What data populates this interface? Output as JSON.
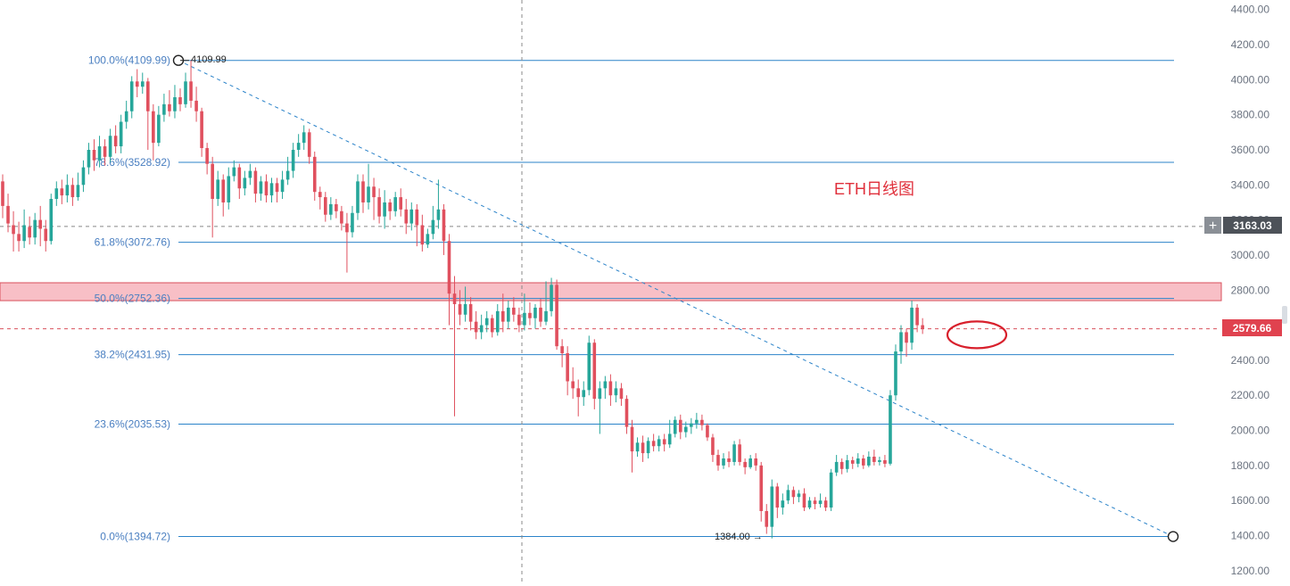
{
  "chart_data": {
    "type": "candlestick",
    "title": "ETH日线图",
    "symbol": "ETH",
    "timeframe": "daily",
    "grid": false,
    "y_axis": {
      "position": "right",
      "ylim": [
        1130,
        4450
      ],
      "ticks": [
        "4400.00",
        "4200.00",
        "4000.00",
        "3800.00",
        "3600.00",
        "3400.00",
        "3200.00",
        "3000.00",
        "2800.00",
        "2600.00",
        "2400.00",
        "2200.00",
        "2000.00",
        "1800.00",
        "1600.00",
        "1400.00",
        "1200.00"
      ]
    },
    "current_price": {
      "value": 2579.66,
      "label": "2579.66",
      "color": "#e0424f"
    },
    "crosshair": {
      "price": 3163.03,
      "label": "3163.03",
      "plus_symbol": "+"
    },
    "fibonacci": {
      "high": 4109.99,
      "low": 1394.72,
      "levels": [
        {
          "label": "100.0%(4109.99)",
          "price": 4109.99
        },
        {
          "label": "78.6%(3528.92)",
          "price": 3528.92
        },
        {
          "label": "61.8%(3072.76)",
          "price": 3072.76
        },
        {
          "label": "50.0%(2752.36)",
          "price": 2752.36
        },
        {
          "label": "38.2%(2431.95)",
          "price": 2431.95
        },
        {
          "label": "23.6%(2035.53)",
          "price": 2035.53
        },
        {
          "label": "0.0%(1394.72)",
          "price": 1394.72
        }
      ],
      "line_color": "#2b83c9"
    },
    "annotations": {
      "high_marker": "4109.99",
      "low_marker": "1384.00 →",
      "low_price": 1384.0,
      "resistance_zone": {
        "from": 2740,
        "to": 2842,
        "color": "#f8bfc6"
      },
      "circled_area_price": 2545
    },
    "candles": [
      [
        3420,
        3280,
        3460,
        3210
      ],
      [
        3280,
        3180,
        3350,
        3130
      ],
      [
        3170,
        3120,
        3250,
        3020
      ],
      [
        3120,
        3080,
        3190,
        3020
      ],
      [
        3080,
        3170,
        3260,
        3040
      ],
      [
        3160,
        3100,
        3220,
        3060
      ],
      [
        3100,
        3200,
        3240,
        3060
      ],
      [
        3200,
        3150,
        3280,
        3050
      ],
      [
        3150,
        3080,
        3200,
        3020
      ],
      [
        3080,
        3320,
        3350,
        3060
      ],
      [
        3320,
        3380,
        3420,
        3280
      ],
      [
        3380,
        3340,
        3430,
        3290
      ],
      [
        3340,
        3400,
        3460,
        3300
      ],
      [
        3400,
        3330,
        3440,
        3280
      ],
      [
        3330,
        3400,
        3470,
        3310
      ],
      [
        3400,
        3500,
        3540,
        3360
      ],
      [
        3500,
        3600,
        3640,
        3460
      ],
      [
        3600,
        3540,
        3660,
        3480
      ],
      [
        3540,
        3620,
        3680,
        3500
      ],
      [
        3620,
        3560,
        3660,
        3510
      ],
      [
        3560,
        3680,
        3720,
        3530
      ],
      [
        3680,
        3620,
        3740,
        3580
      ],
      [
        3620,
        3760,
        3800,
        3580
      ],
      [
        3760,
        3820,
        3880,
        3720
      ],
      [
        3820,
        3990,
        4020,
        3780
      ],
      [
        3990,
        3960,
        4060,
        3900
      ],
      [
        3960,
        3990,
        4040,
        3920
      ],
      [
        3990,
        3820,
        4010,
        3600
      ],
      [
        3820,
        3640,
        3860,
        3540
      ],
      [
        3640,
        3800,
        3850,
        3620
      ],
      [
        3800,
        3860,
        3920,
        3760
      ],
      [
        3860,
        3820,
        3940,
        3790
      ],
      [
        3820,
        3900,
        3970,
        3780
      ],
      [
        3900,
        3860,
        3950,
        3820
      ],
      [
        3860,
        3990,
        4040,
        3840
      ],
      [
        3990,
        3880,
        4109.99,
        3840
      ],
      [
        3880,
        3820,
        3960,
        3760
      ],
      [
        3820,
        3610,
        3840,
        3560
      ],
      [
        3610,
        3520,
        3640,
        3460
      ],
      [
        3520,
        3320,
        3560,
        3100
      ],
      [
        3320,
        3430,
        3480,
        3280
      ],
      [
        3430,
        3300,
        3460,
        3220
      ],
      [
        3300,
        3450,
        3500,
        3260
      ],
      [
        3450,
        3500,
        3540,
        3420
      ],
      [
        3500,
        3380,
        3520,
        3320
      ],
      [
        3380,
        3440,
        3480,
        3340
      ],
      [
        3440,
        3480,
        3520,
        3400
      ],
      [
        3480,
        3350,
        3500,
        3300
      ],
      [
        3350,
        3420,
        3450,
        3310
      ],
      [
        3420,
        3340,
        3460,
        3300
      ],
      [
        3340,
        3410,
        3440,
        3300
      ],
      [
        3410,
        3360,
        3440,
        3300
      ],
      [
        3360,
        3430,
        3480,
        3320
      ],
      [
        3430,
        3480,
        3560,
        3400
      ],
      [
        3480,
        3600,
        3640,
        3440
      ],
      [
        3600,
        3640,
        3690,
        3560
      ],
      [
        3640,
        3700,
        3740,
        3600
      ],
      [
        3700,
        3560,
        3720,
        3520
      ],
      [
        3560,
        3360,
        3590,
        3310
      ],
      [
        3360,
        3330,
        3390,
        3260
      ],
      [
        3330,
        3230,
        3360,
        3190
      ],
      [
        3230,
        3290,
        3330,
        3200
      ],
      [
        3290,
        3250,
        3320,
        3210
      ],
      [
        3250,
        3180,
        3280,
        3140
      ],
      [
        3180,
        3130,
        3240,
        2900
      ],
      [
        3130,
        3240,
        3280,
        3100
      ],
      [
        3240,
        3420,
        3460,
        3200
      ],
      [
        3420,
        3300,
        3460,
        3240
      ],
      [
        3300,
        3390,
        3520,
        3260
      ],
      [
        3390,
        3330,
        3440,
        3200
      ],
      [
        3330,
        3220,
        3380,
        3180
      ],
      [
        3220,
        3300,
        3370,
        3150
      ],
      [
        3300,
        3250,
        3320,
        3200
      ],
      [
        3250,
        3330,
        3360,
        3220
      ],
      [
        3330,
        3260,
        3380,
        3220
      ],
      [
        3260,
        3180,
        3320,
        3120
      ],
      [
        3180,
        3260,
        3300,
        3140
      ],
      [
        3260,
        3170,
        3290,
        3050
      ],
      [
        3170,
        3060,
        3230,
        3020
      ],
      [
        3060,
        3120,
        3150,
        3040
      ],
      [
        3120,
        3200,
        3280,
        3090
      ],
      [
        3200,
        3260,
        3430,
        3150
      ],
      [
        3260,
        3080,
        3290,
        3000
      ],
      [
        3080,
        2780,
        3120,
        2600
      ],
      [
        2780,
        2720,
        2880,
        2080
      ],
      [
        2720,
        2660,
        2800,
        2600
      ],
      [
        2660,
        2720,
        2820,
        2620
      ],
      [
        2720,
        2620,
        2760,
        2570
      ],
      [
        2620,
        2560,
        2680,
        2520
      ],
      [
        2560,
        2600,
        2660,
        2520
      ],
      [
        2600,
        2640,
        2680,
        2560
      ],
      [
        2640,
        2560,
        2660,
        2530
      ],
      [
        2560,
        2680,
        2720,
        2540
      ],
      [
        2680,
        2620,
        2780,
        2560
      ],
      [
        2620,
        2700,
        2740,
        2580
      ],
      [
        2700,
        2660,
        2760,
        2620
      ],
      [
        2660,
        2600,
        2700,
        2560
      ],
      [
        2600,
        2670,
        2780,
        2570
      ],
      [
        2670,
        2640,
        2730,
        2600
      ],
      [
        2640,
        2700,
        2720,
        2580
      ],
      [
        2700,
        2620,
        2750,
        2590
      ],
      [
        2620,
        2680,
        2850,
        2600
      ],
      [
        2680,
        2830,
        2870,
        2650
      ],
      [
        2830,
        2480,
        2860,
        2460
      ],
      [
        2480,
        2440,
        2520,
        2360
      ],
      [
        2440,
        2280,
        2480,
        2200
      ],
      [
        2280,
        2240,
        2360,
        2180
      ],
      [
        2240,
        2190,
        2290,
        2080
      ],
      [
        2190,
        2230,
        2280,
        2140
      ],
      [
        2230,
        2500,
        2540,
        2200
      ],
      [
        2500,
        2180,
        2520,
        2120
      ],
      [
        2180,
        2240,
        2280,
        1980
      ],
      [
        2240,
        2280,
        2310,
        2180
      ],
      [
        2280,
        2200,
        2320,
        2140
      ],
      [
        2200,
        2240,
        2280,
        2160
      ],
      [
        2240,
        2180,
        2270,
        2140
      ],
      [
        2180,
        2020,
        2200,
        1980
      ],
      [
        2020,
        1880,
        2060,
        1760
      ],
      [
        1880,
        1930,
        1960,
        1850
      ],
      [
        1930,
        1870,
        1970,
        1820
      ],
      [
        1870,
        1940,
        1960,
        1840
      ],
      [
        1940,
        1910,
        1980,
        1880
      ],
      [
        1910,
        1950,
        1970,
        1880
      ],
      [
        1950,
        1920,
        1980,
        1880
      ],
      [
        1920,
        1980,
        2060,
        1900
      ],
      [
        1980,
        2060,
        2080,
        1960
      ],
      [
        2060,
        1990,
        2090,
        1950
      ],
      [
        1990,
        2020,
        2050,
        1960
      ],
      [
        2020,
        2040,
        2070,
        1980
      ],
      [
        2040,
        2060,
        2100,
        2010
      ],
      [
        2060,
        2030,
        2090,
        2000
      ],
      [
        2030,
        1960,
        2040,
        1940
      ],
      [
        1960,
        1860,
        1980,
        1820
      ],
      [
        1860,
        1800,
        1890,
        1770
      ],
      [
        1800,
        1840,
        1870,
        1780
      ],
      [
        1840,
        1820,
        1880,
        1790
      ],
      [
        1820,
        1920,
        1940,
        1800
      ],
      [
        1920,
        1820,
        1950,
        1800
      ],
      [
        1820,
        1790,
        1840,
        1750
      ],
      [
        1790,
        1840,
        1860,
        1780
      ],
      [
        1840,
        1800,
        1870,
        1770
      ],
      [
        1800,
        1540,
        1820,
        1480
      ],
      [
        1540,
        1450,
        1580,
        1410
      ],
      [
        1450,
        1680,
        1720,
        1384
      ],
      [
        1680,
        1560,
        1700,
        1500
      ],
      [
        1560,
        1600,
        1640,
        1520
      ],
      [
        1600,
        1660,
        1690,
        1580
      ],
      [
        1660,
        1620,
        1680,
        1580
      ],
      [
        1620,
        1640,
        1660,
        1590
      ],
      [
        1640,
        1560,
        1670,
        1540
      ],
      [
        1560,
        1600,
        1620,
        1550
      ],
      [
        1600,
        1580,
        1620,
        1550
      ],
      [
        1580,
        1600,
        1640,
        1560
      ],
      [
        1600,
        1560,
        1620,
        1540
      ],
      [
        1560,
        1760,
        1780,
        1540
      ],
      [
        1760,
        1820,
        1860,
        1740
      ],
      [
        1820,
        1780,
        1840,
        1750
      ],
      [
        1780,
        1830,
        1860,
        1760
      ],
      [
        1830,
        1810,
        1850,
        1780
      ],
      [
        1810,
        1840,
        1870,
        1790
      ],
      [
        1840,
        1800,
        1860,
        1780
      ],
      [
        1800,
        1850,
        1880,
        1790
      ],
      [
        1850,
        1820,
        1890,
        1800
      ],
      [
        1820,
        1830,
        1850,
        1800
      ],
      [
        1830,
        1810,
        1860,
        1790
      ],
      [
        1810,
        2200,
        2230,
        1800
      ],
      [
        2200,
        2450,
        2490,
        2170
      ],
      [
        2450,
        2560,
        2600,
        2380
      ],
      [
        2560,
        2500,
        2580,
        2420
      ],
      [
        2500,
        2700,
        2740,
        2460
      ],
      [
        2700,
        2600,
        2720,
        2560
      ],
      [
        2600,
        2580,
        2640,
        2550
      ]
    ]
  }
}
